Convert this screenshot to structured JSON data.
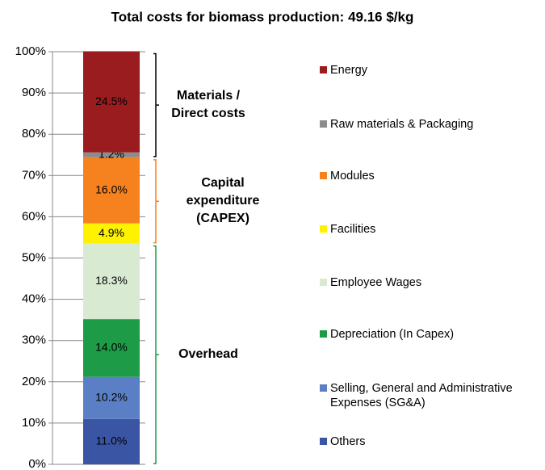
{
  "chart_data": {
    "type": "stacked_bar",
    "title": "Total costs for biomass production: 49.16 $/kg",
    "ylim": [
      0,
      100
    ],
    "yticks": [
      {
        "value": 0,
        "label": "0%"
      },
      {
        "value": 10,
        "label": "10%"
      },
      {
        "value": 20,
        "label": "20%"
      },
      {
        "value": 30,
        "label": "30%"
      },
      {
        "value": 40,
        "label": "40%"
      },
      {
        "value": 50,
        "label": "50%"
      },
      {
        "value": 60,
        "label": "60%"
      },
      {
        "value": 70,
        "label": "70%"
      },
      {
        "value": 80,
        "label": "80%"
      },
      {
        "value": 90,
        "label": "90%"
      },
      {
        "value": 100,
        "label": "100%"
      }
    ],
    "series": [
      {
        "name": "Energy",
        "color": "#9b1c1f",
        "values": [
          24.5
        ],
        "value_labels": [
          "24.5%"
        ]
      },
      {
        "name": "Raw materials & Packaging",
        "color": "#8c8c8c",
        "values": [
          1.2
        ],
        "value_labels": [
          "1.2%"
        ]
      },
      {
        "name": "Modules",
        "color": "#f5821f",
        "values": [
          16.0
        ],
        "value_labels": [
          "16.0%"
        ]
      },
      {
        "name": "Facilities",
        "color": "#fff200",
        "values": [
          4.9
        ],
        "value_labels": [
          "4.9%"
        ]
      },
      {
        "name": "Employee Wages",
        "color": "#d9ead3",
        "values": [
          18.3
        ],
        "value_labels": [
          "18.3%"
        ]
      },
      {
        "name": "Depreciation (In Capex)",
        "color": "#1e9b47",
        "values": [
          14.0
        ],
        "value_labels": [
          "14.0%"
        ]
      },
      {
        "name": "Selling, General and Administrative Expenses (SG&A)",
        "color": "#5b7fc4",
        "values": [
          10.2
        ],
        "value_labels": [
          "10.2%"
        ]
      },
      {
        "name": "Others",
        "color": "#3a55a4",
        "values": [
          11.0
        ],
        "value_labels": [
          "11.0%"
        ]
      }
    ],
    "annotations": [
      {
        "label": "Materials / Direct costs",
        "color": "#000000"
      },
      {
        "label": "Capital expenditure (CAPEX)",
        "color": "#f5821f"
      },
      {
        "label": "Overhead",
        "color": "#1e9b47"
      }
    ]
  }
}
